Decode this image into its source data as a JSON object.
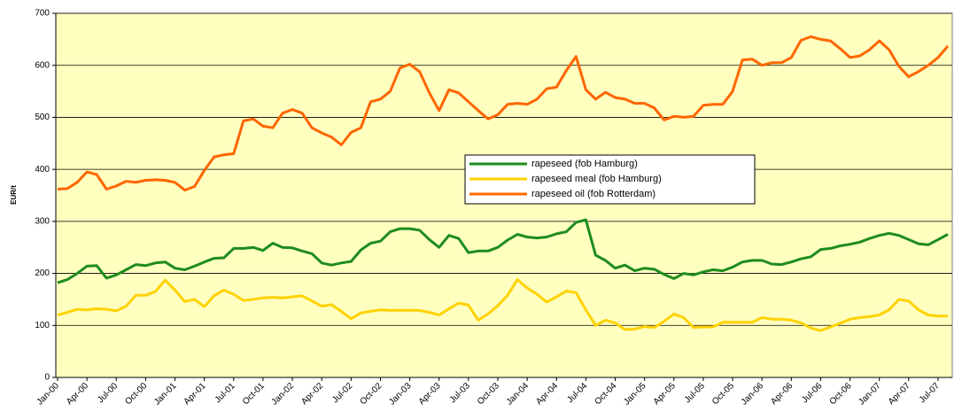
{
  "chart_data": {
    "type": "line",
    "y_label": "EUR/t",
    "categories": [
      "Jan-00",
      null,
      null,
      "Apr-00",
      null,
      null,
      "Jul-00",
      null,
      null,
      "Oct-00",
      null,
      null,
      "Jan-01",
      null,
      null,
      "Apr-01",
      null,
      null,
      "Jul-01",
      null,
      null,
      "Oct-01",
      null,
      null,
      "Jan-02",
      null,
      null,
      "Apr-02",
      null,
      null,
      "Jul-02",
      null,
      null,
      "Oct-02",
      null,
      null,
      "Jan-03",
      null,
      null,
      "Apr-03",
      null,
      null,
      "Jul-03",
      null,
      null,
      "Oct-03",
      null,
      null,
      "Jan-04",
      null,
      null,
      "Apr-04",
      null,
      null,
      "Jul-04",
      null,
      null,
      "Oct-04",
      null,
      null,
      "Jan-05",
      null,
      null,
      "Apr-05",
      null,
      null,
      "Jul-05",
      null,
      null,
      "Oct-05",
      null,
      null,
      "Jan-06",
      null,
      null,
      "Apr-06",
      null,
      null,
      "Jul-06",
      null,
      null,
      "Oct-06",
      null,
      null,
      "Jan-07",
      null,
      null,
      "Apr-07",
      null,
      null,
      "Jul-07",
      null
    ],
    "series": [
      {
        "name": "rapeseed (fob Hamburg)",
        "color": "#1e8c1e",
        "values": [
          182,
          188,
          200,
          214,
          215,
          191,
          197,
          207,
          217,
          215,
          220,
          222,
          210,
          207,
          214,
          222,
          229,
          230,
          248,
          248,
          250,
          244,
          258,
          250,
          249,
          243,
          238,
          220,
          216,
          220,
          223,
          245,
          258,
          262,
          280,
          286,
          286,
          283,
          265,
          250,
          273,
          267,
          240,
          243,
          243,
          250,
          264,
          275,
          270,
          268,
          270,
          276,
          280,
          298,
          303,
          235,
          225,
          210,
          216,
          205,
          210,
          208,
          198,
          190,
          200,
          197,
          203,
          207,
          205,
          212,
          222,
          225,
          225,
          218,
          217,
          222,
          228,
          232,
          246,
          248,
          253,
          256,
          260,
          267,
          273,
          277,
          273,
          265,
          257,
          255,
          265,
          275
        ]
      },
      {
        "name": "rapeseed meal (fob Hamburg)",
        "color": "#ffd200",
        "values": [
          120,
          125,
          131,
          130,
          132,
          131,
          128,
          137,
          158,
          158,
          165,
          187,
          168,
          146,
          150,
          136,
          157,
          168,
          160,
          148,
          150,
          153,
          154,
          153,
          155,
          157,
          147,
          137,
          140,
          127,
          113,
          124,
          127,
          130,
          129,
          129,
          129,
          129,
          125,
          120,
          132,
          143,
          139,
          110,
          122,
          138,
          158,
          188,
          172,
          160,
          145,
          155,
          166,
          163,
          130,
          100,
          110,
          105,
          92,
          93,
          98,
          96,
          108,
          122,
          115,
          96,
          97,
          97,
          106,
          106,
          106,
          106,
          115,
          112,
          112,
          110,
          105,
          95,
          90,
          97,
          104,
          112,
          115,
          117,
          120,
          130,
          150,
          147,
          130,
          120,
          118,
          118
        ]
      },
      {
        "name": "rapeseed oil (fob Rotterdam)",
        "color": "#ff6600",
        "values": [
          362,
          363,
          375,
          395,
          390,
          362,
          368,
          377,
          375,
          379,
          380,
          379,
          375,
          360,
          367,
          398,
          424,
          428,
          430,
          493,
          497,
          483,
          480,
          508,
          515,
          508,
          480,
          470,
          462,
          447,
          471,
          480,
          530,
          535,
          550,
          595,
          602,
          588,
          547,
          513,
          553,
          547,
          530,
          513,
          497,
          505,
          525,
          527,
          525,
          535,
          555,
          558,
          590,
          617,
          553,
          535,
          548,
          538,
          535,
          527,
          527,
          518,
          495,
          502,
          500,
          502,
          523,
          525,
          525,
          550,
          610,
          612,
          600,
          605,
          605,
          615,
          648,
          655,
          650,
          647,
          632,
          615,
          618,
          630,
          647,
          630,
          598,
          578,
          588,
          600,
          615,
          637
        ]
      }
    ],
    "ylim": [
      0,
      700
    ],
    "yticks": [
      0,
      100,
      200,
      300,
      400,
      500,
      600,
      700
    ],
    "grid": true,
    "legend": "center",
    "plot_background": "#ffffc0"
  }
}
